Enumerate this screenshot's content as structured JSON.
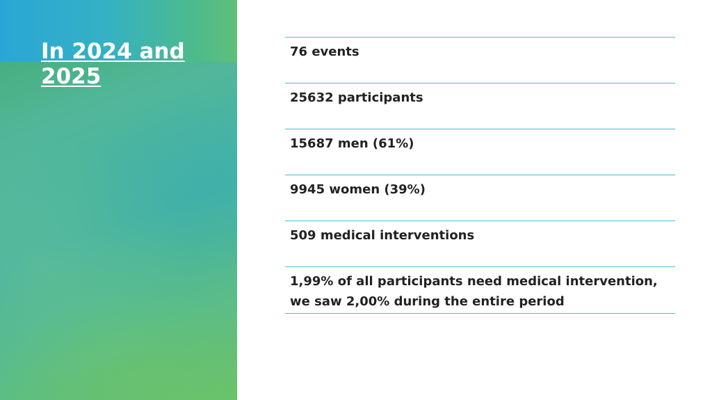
{
  "slide": {
    "title": "In 2024 and 2025",
    "stats": [
      "76 events",
      "25632 participants",
      "15687 men (61%)",
      "9945 women (39%)",
      "509 medical interventions",
      "1,99% of all participants need medical intervention, we saw 2,00% during the entire period"
    ]
  },
  "colors": {
    "accent_line": "#4cb8d4",
    "title_text": "#ffffff",
    "body_text": "#222222",
    "panel_blue": "#2aa6d6",
    "panel_green": "#5cbd86"
  }
}
